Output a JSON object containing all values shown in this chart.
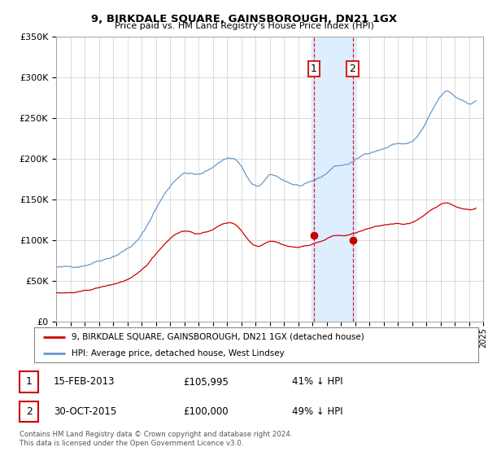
{
  "title": "9, BIRKDALE SQUARE, GAINSBOROUGH, DN21 1GX",
  "subtitle": "Price paid vs. HM Land Registry's House Price Index (HPI)",
  "ylim": [
    0,
    350000
  ],
  "yticks": [
    0,
    50000,
    100000,
    150000,
    200000,
    250000,
    300000,
    350000
  ],
  "hpi_color": "#6699cc",
  "price_color": "#cc0000",
  "highlight_fill": "#ddeeff",
  "highlight_edge": "#dd2222",
  "legend_label1": "9, BIRKDALE SQUARE, GAINSBOROUGH, DN21 1GX (detached house)",
  "legend_label2": "HPI: Average price, detached house, West Lindsey",
  "transaction1_date": "15-FEB-2013",
  "transaction1_price": "£105,995",
  "transaction1_hpi": "41% ↓ HPI",
  "transaction2_date": "30-OCT-2015",
  "transaction2_price": "£100,000",
  "transaction2_hpi": "49% ↓ HPI",
  "footer": "Contains HM Land Registry data © Crown copyright and database right 2024.\nThis data is licensed under the Open Government Licence v3.0.",
  "transaction1_x": 2013.12,
  "transaction1_y": 105995,
  "transaction2_x": 2015.83,
  "transaction2_y": 100000,
  "highlight_x1": 2012.92,
  "highlight_x2": 2016.08,
  "xmin": 1995,
  "xmax": 2025
}
